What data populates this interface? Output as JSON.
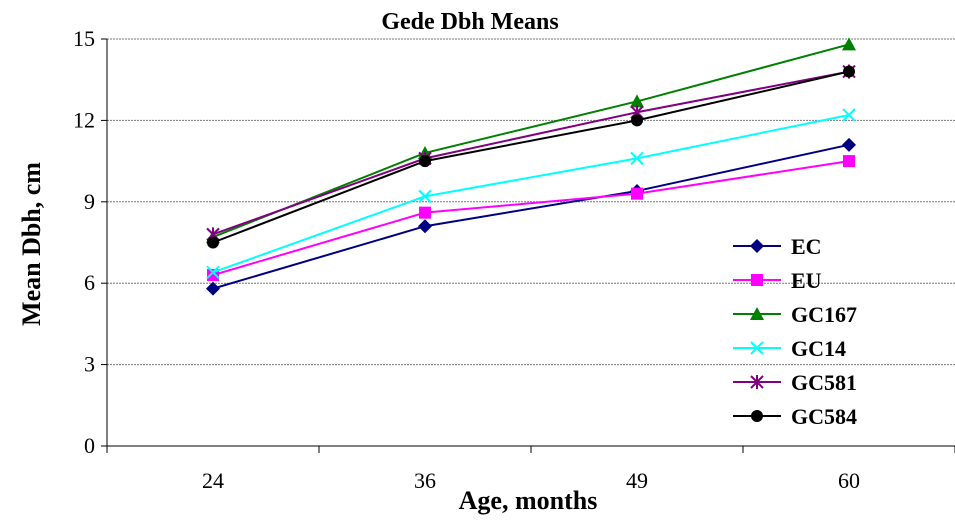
{
  "chart_data": {
    "type": "line",
    "title": "Gede Dbh Means",
    "xlabel": "Age, months",
    "ylabel": "Mean Dbh, cm",
    "categories": [
      "24",
      "36",
      "49",
      "60"
    ],
    "ylim": [
      0,
      15
    ],
    "yticks": [
      0,
      3,
      6,
      9,
      12,
      15
    ],
    "grid": true,
    "legend_position": "right",
    "series": [
      {
        "name": "EC",
        "values": [
          5.8,
          8.1,
          9.4,
          11.1
        ],
        "color": "#000080",
        "marker": "diamond"
      },
      {
        "name": "EU",
        "values": [
          6.3,
          8.6,
          9.3,
          10.5
        ],
        "color": "#ff00ff",
        "marker": "square"
      },
      {
        "name": "GC167",
        "values": [
          7.7,
          10.8,
          12.7,
          14.8
        ],
        "color": "#008000",
        "marker": "triangle"
      },
      {
        "name": "GC14",
        "values": [
          6.4,
          9.2,
          10.6,
          12.2
        ],
        "color": "#00ffff",
        "marker": "x"
      },
      {
        "name": "GC581",
        "values": [
          7.8,
          10.6,
          12.3,
          13.8
        ],
        "color": "#800080",
        "marker": "star"
      },
      {
        "name": "GC584",
        "values": [
          7.5,
          10.5,
          12.0,
          13.8
        ],
        "color": "#000000",
        "marker": "circle"
      }
    ]
  }
}
